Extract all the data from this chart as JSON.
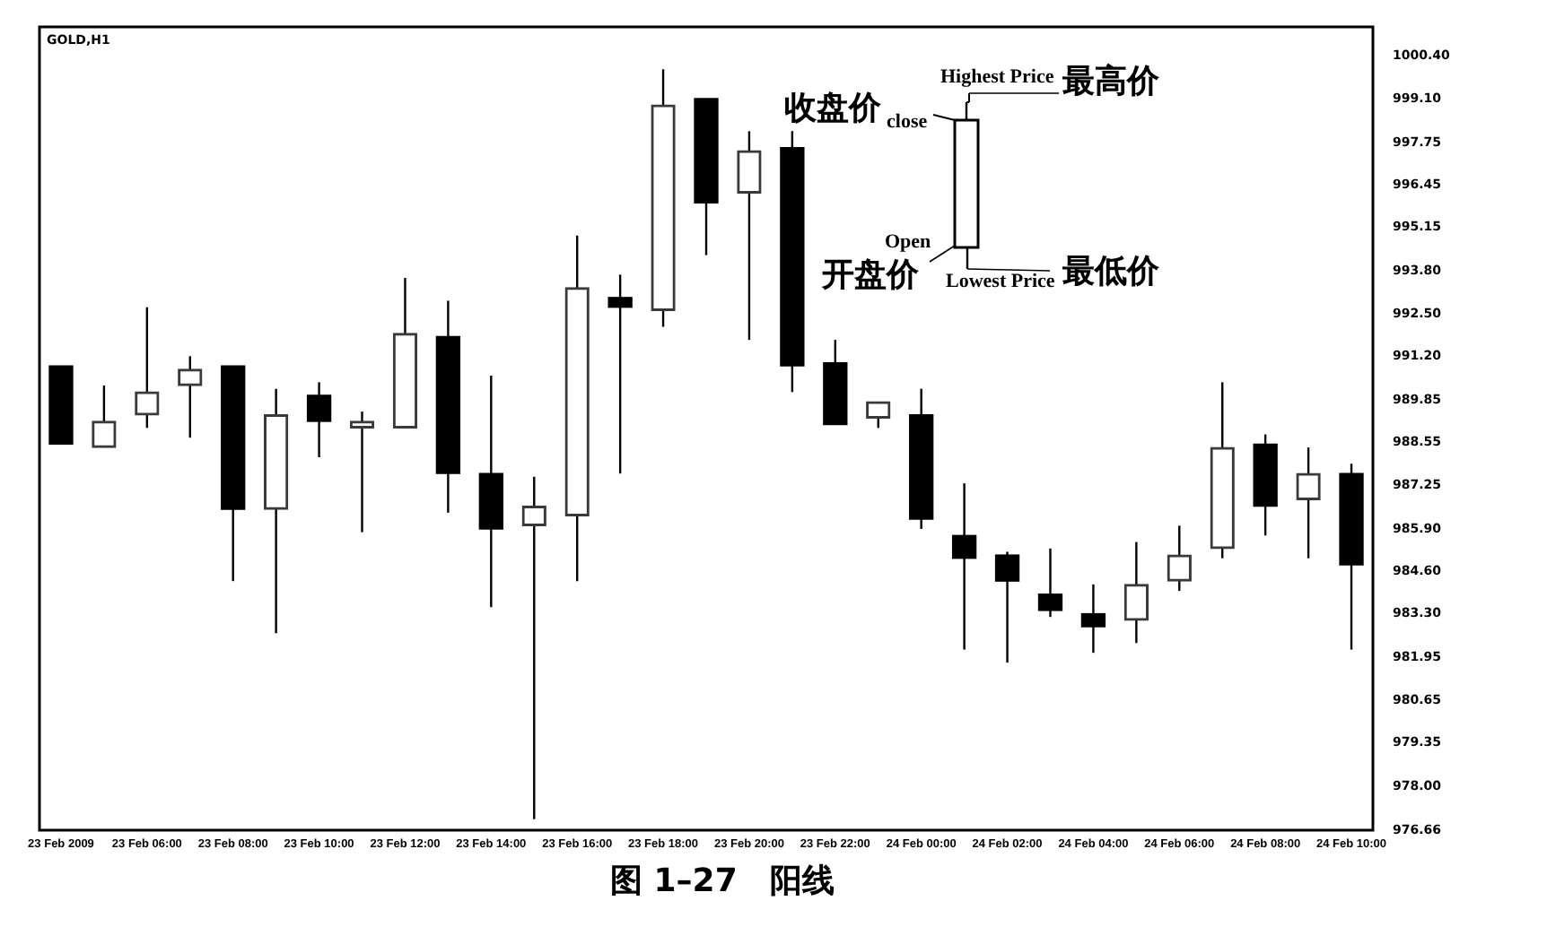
{
  "chart_data": {
    "type": "candlestick",
    "title": "GOLD,H1",
    "categories": [
      "23 Feb 2009",
      null,
      "23 Feb 06:00",
      null,
      "23 Feb 08:00",
      null,
      "23 Feb 10:00",
      null,
      "23 Feb 12:00",
      null,
      "23 Feb 14:00",
      null,
      "23 Feb 16:00",
      null,
      "23 Feb 18:00",
      null,
      "23 Feb 20:00",
      null,
      "23 Feb 22:00",
      null,
      "24 Feb 00:00",
      null,
      "24 Feb 02:00",
      null,
      "24 Feb 04:00",
      null,
      "24 Feb 06:00",
      null,
      "24 Feb 08:00",
      null,
      "24 Feb 10:00"
    ],
    "ohlc": [
      [
        990.9,
        990.9,
        988.5,
        988.5
      ],
      [
        988.4,
        990.3,
        988.4,
        989.2
      ],
      [
        989.4,
        992.7,
        989.0,
        990.1
      ],
      [
        990.3,
        991.2,
        988.7,
        990.8
      ],
      [
        990.9,
        990.9,
        984.3,
        986.5
      ],
      [
        986.5,
        990.2,
        982.7,
        989.4
      ],
      [
        990.0,
        990.4,
        988.1,
        989.2
      ],
      [
        989.0,
        989.5,
        985.8,
        989.2
      ],
      [
        989.0,
        993.6,
        989.0,
        991.9
      ],
      [
        991.8,
        992.9,
        986.4,
        987.6
      ],
      [
        987.6,
        990.6,
        983.5,
        985.9
      ],
      [
        986.0,
        987.5,
        977.0,
        986.6
      ],
      [
        986.3,
        994.9,
        984.3,
        993.3
      ],
      [
        993.0,
        993.7,
        987.6,
        992.7
      ],
      [
        992.6,
        1000.0,
        992.1,
        998.9
      ],
      [
        999.1,
        999.1,
        994.3,
        995.9
      ],
      [
        996.2,
        998.1,
        991.7,
        997.5
      ],
      [
        997.6,
        998.1,
        990.1,
        990.9
      ],
      [
        991.0,
        991.7,
        989.1,
        989.1
      ],
      [
        989.3,
        989.8,
        989.0,
        989.8
      ],
      [
        989.4,
        990.2,
        985.9,
        986.2
      ],
      [
        985.7,
        987.3,
        982.2,
        985.0
      ],
      [
        985.1,
        985.2,
        981.8,
        984.3
      ],
      [
        983.9,
        985.3,
        983.2,
        983.4
      ],
      [
        983.3,
        984.2,
        982.1,
        982.9
      ],
      [
        983.1,
        985.5,
        982.4,
        984.2
      ],
      [
        984.3,
        986.0,
        984.0,
        985.1
      ],
      [
        985.3,
        990.4,
        985.0,
        988.4
      ],
      [
        988.5,
        988.8,
        985.7,
        986.6
      ],
      [
        986.8,
        988.4,
        985.0,
        987.6
      ],
      [
        987.6,
        987.9,
        982.2,
        984.8
      ]
    ],
    "ylim": [
      976.66,
      1001.3
    ],
    "yticks": [
      {
        "value": 1000.4,
        "label": "1000.40"
      },
      {
        "value": 999.1,
        "label": "999.10"
      },
      997.75,
      996.45,
      995.15,
      {
        "value": 993.8,
        "label": "993.80"
      },
      {
        "value": 992.5,
        "label": "992.50"
      },
      {
        "value": 991.2,
        "label": "991.20"
      },
      989.85,
      988.55,
      987.25,
      {
        "value": 985.9,
        "label": "985.90"
      },
      {
        "value": 984.6,
        "label": "984.60"
      },
      {
        "value": 983.3,
        "label": "983.30"
      },
      981.95,
      980.65,
      979.35,
      {
        "value": 978,
        "label": "978.00"
      },
      976.66
    ],
    "grid": false,
    "legend": false,
    "annotations": [
      "收盘价",
      "close",
      "Highest Price",
      "最高价",
      "Open",
      "开盘价",
      "Lowest Price",
      "最低价",
      "图 1–27　阳线"
    ]
  }
}
